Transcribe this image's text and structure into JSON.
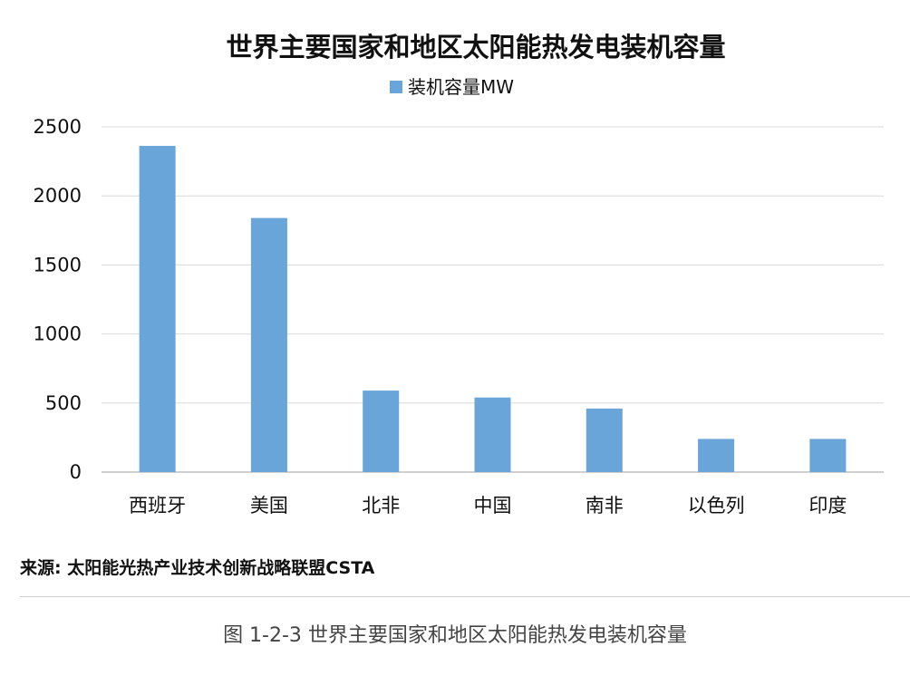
{
  "chart_data": {
    "type": "bar",
    "title": "世界主要国家和地区太阳能热发电装机容量",
    "legend": {
      "position": "top",
      "entries": [
        "装机容量MW"
      ]
    },
    "categories": [
      "西班牙",
      "美国",
      "北非",
      "中国",
      "南非",
      "以色列",
      "印度"
    ],
    "series": [
      {
        "name": "装机容量MW",
        "values": [
          2362,
          1840,
          590,
          540,
          460,
          240,
          240
        ],
        "color": "#6aa5da"
      }
    ],
    "ylim": [
      0,
      2500
    ],
    "yticks": [
      0,
      500,
      1000,
      1500,
      2000,
      2500
    ],
    "yticks_labels": [
      "0",
      "500",
      "1000",
      "1500",
      "2000",
      "2500"
    ],
    "grid": true,
    "xlabel": "",
    "ylabel": ""
  },
  "source_note": "来源: 太阳能光热产业技术创新战略联盟CSTA",
  "figure_caption": "图 1-2-3 世界主要国家和地区太阳能热发电装机容量"
}
